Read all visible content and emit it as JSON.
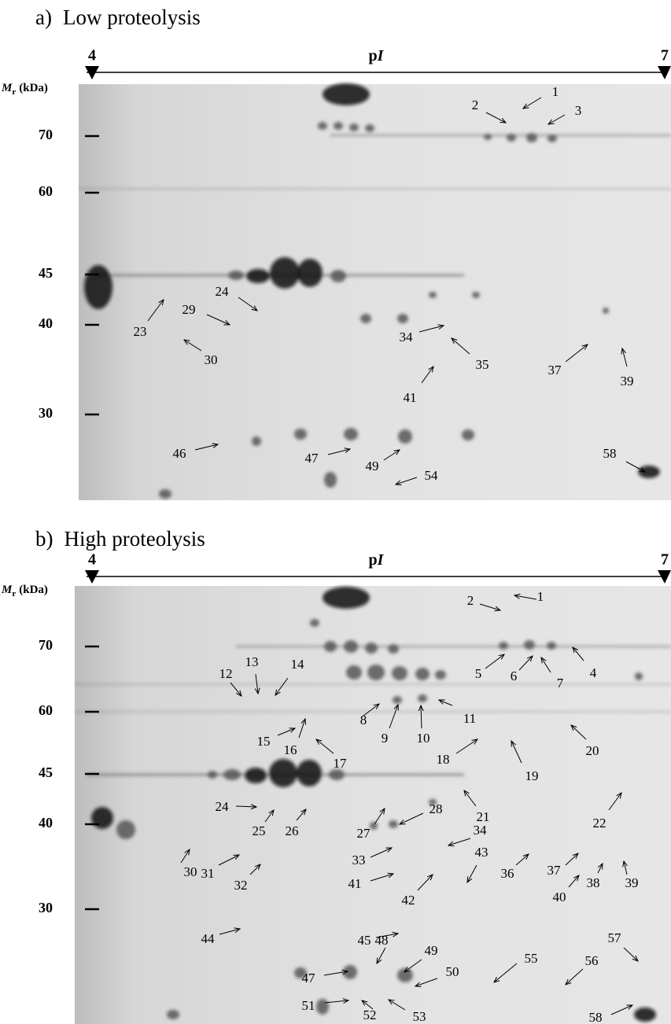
{
  "panels": [
    {
      "label": "a)",
      "title": "Low proteolysis",
      "x_axis": {
        "start": "4",
        "label_plain": "p",
        "label_italic": "I",
        "end": "7"
      },
      "y_axis": {
        "symbol": "M",
        "subscript": "r",
        "unit": "(kDa)",
        "ticks": [
          70,
          60,
          45,
          40,
          30
        ]
      },
      "spots": [
        "1",
        "2",
        "3",
        "24",
        "23",
        "29",
        "30",
        "34",
        "35",
        "41",
        "37",
        "39",
        "46",
        "47",
        "49",
        "54",
        "58"
      ]
    },
    {
      "label": "b)",
      "title": "High proteolysis",
      "x_axis": {
        "start": "4",
        "label_plain": "p",
        "label_italic": "I",
        "end": "7"
      },
      "y_axis": {
        "symbol": "M",
        "subscript": "r",
        "unit": "(kDa)",
        "ticks": [
          70,
          60,
          45,
          40,
          30
        ]
      },
      "spots": [
        "1",
        "2",
        "5",
        "6",
        "7",
        "4",
        "12",
        "13",
        "14",
        "8",
        "9",
        "10",
        "11",
        "15",
        "16",
        "17",
        "18",
        "19",
        "20",
        "24",
        "25",
        "26",
        "27",
        "28",
        "21",
        "22",
        "34",
        "30",
        "31",
        "32",
        "33",
        "41",
        "43",
        "36",
        "37",
        "38",
        "39",
        "40",
        "42",
        "44",
        "45",
        "48",
        "49",
        "50",
        "47",
        "55",
        "56",
        "57",
        "51",
        "52",
        "53",
        "58"
      ]
    }
  ]
}
